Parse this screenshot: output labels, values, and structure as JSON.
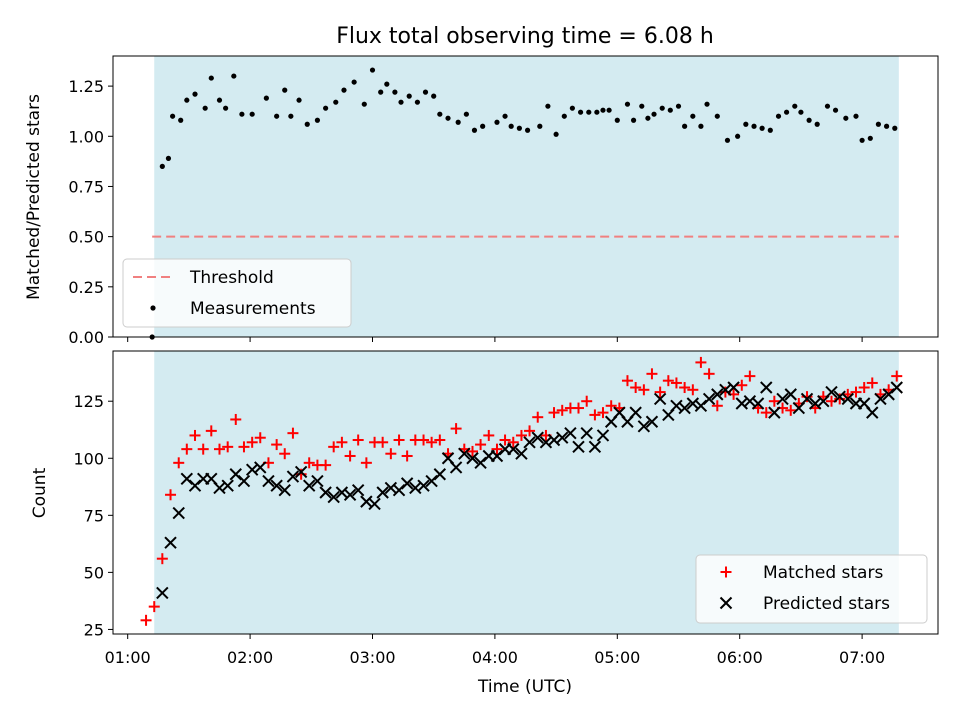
{
  "colors": {
    "background": "#ffffff",
    "shaded_region": "#d4ebf1",
    "threshold_line": "#f08080",
    "measurements": "#000000",
    "matched_stars": "#ff0000",
    "predicted_stars": "#000000",
    "axes": "#000000"
  },
  "chart_data": [
    {
      "type": "scatter",
      "title": "Flux total observing time = 6.08 h",
      "xlabel": "",
      "ylabel": "Matched/Predicted stars",
      "x_unit": "hours since 00:00 UTC",
      "xlim": [
        0.88,
        7.62
      ],
      "ylim": [
        0.0,
        1.4
      ],
      "yticks": [
        0.0,
        0.25,
        0.5,
        0.75,
        1.0,
        1.25
      ],
      "ytick_labels": [
        "0.00",
        "0.25",
        "0.50",
        "0.75",
        "1.00",
        "1.25"
      ],
      "xticks": [
        1,
        2,
        3,
        4,
        5,
        6,
        7
      ],
      "shaded_span": [
        1.217,
        7.3
      ],
      "threshold": {
        "name": "Threshold",
        "value": 0.5,
        "x_range": [
          1.2,
          7.3
        ]
      },
      "legend": {
        "position": "lower-left",
        "entries": [
          "Threshold",
          "Measurements"
        ]
      },
      "series": [
        {
          "name": "Measurements",
          "x": [
            1.2,
            1.283,
            1.333,
            1.367,
            1.433,
            1.483,
            1.55,
            1.633,
            1.683,
            1.75,
            1.8,
            1.867,
            1.933,
            2.017,
            2.133,
            2.217,
            2.283,
            2.333,
            2.4,
            2.467,
            2.55,
            2.617,
            2.7,
            2.767,
            2.85,
            2.933,
            3.0,
            3.067,
            3.117,
            3.183,
            3.233,
            3.3,
            3.367,
            3.433,
            3.5,
            3.55,
            3.617,
            3.7,
            3.767,
            3.833,
            3.9,
            4.017,
            4.083,
            4.133,
            4.2,
            4.267,
            4.367,
            4.433,
            4.5,
            4.567,
            4.633,
            4.7,
            4.767,
            4.833,
            4.883,
            4.933,
            5.0,
            5.083,
            5.133,
            5.2,
            5.25,
            5.3,
            5.367,
            5.433,
            5.5,
            5.55,
            5.617,
            5.683,
            5.733,
            5.817,
            5.9,
            5.983,
            6.05,
            6.117,
            6.183,
            6.25,
            6.317,
            6.383,
            6.45,
            6.5,
            6.567,
            6.633,
            6.717,
            6.783,
            6.867,
            6.95,
            7.0,
            7.067,
            7.133,
            7.2,
            7.267
          ],
          "y": [
            0.0,
            0.85,
            0.89,
            1.1,
            1.08,
            1.18,
            1.21,
            1.14,
            1.29,
            1.18,
            1.14,
            1.3,
            1.11,
            1.11,
            1.19,
            1.1,
            1.23,
            1.1,
            1.18,
            1.06,
            1.08,
            1.14,
            1.17,
            1.23,
            1.27,
            1.16,
            1.33,
            1.22,
            1.26,
            1.22,
            1.17,
            1.2,
            1.17,
            1.22,
            1.2,
            1.11,
            1.09,
            1.07,
            1.11,
            1.03,
            1.05,
            1.07,
            1.1,
            1.05,
            1.04,
            1.03,
            1.05,
            1.15,
            1.01,
            1.1,
            1.14,
            1.12,
            1.12,
            1.12,
            1.13,
            1.13,
            1.08,
            1.16,
            1.08,
            1.15,
            1.09,
            1.11,
            1.14,
            1.13,
            1.15,
            1.05,
            1.1,
            1.05,
            1.16,
            1.1,
            0.98,
            1.0,
            1.06,
            1.05,
            1.04,
            1.03,
            1.1,
            1.12,
            1.15,
            1.12,
            1.08,
            1.06,
            1.15,
            1.13,
            1.09,
            1.1,
            0.98,
            0.99,
            1.06,
            1.05,
            1.04
          ]
        }
      ]
    },
    {
      "type": "scatter",
      "title": "",
      "xlabel": "Time (UTC)",
      "ylabel": "Count",
      "x_unit": "hours since 00:00 UTC",
      "xlim": [
        0.88,
        7.62
      ],
      "ylim": [
        23,
        147
      ],
      "yticks": [
        25,
        50,
        75,
        100,
        125
      ],
      "ytick_labels": [
        "25",
        "50",
        "75",
        "100",
        "125"
      ],
      "xticks": [
        1,
        2,
        3,
        4,
        5,
        6,
        7
      ],
      "xtick_labels": [
        "01:00",
        "02:00",
        "03:00",
        "04:00",
        "05:00",
        "06:00",
        "07:00"
      ],
      "shaded_span": [
        1.217,
        7.3
      ],
      "legend": {
        "position": "lower-right",
        "entries": [
          "Matched stars",
          "Predicted stars"
        ]
      },
      "series": [
        {
          "name": "Matched stars",
          "marker": "+",
          "x": [
            1.15,
            1.217,
            1.283,
            1.35,
            1.417,
            1.483,
            1.55,
            1.617,
            1.683,
            1.75,
            1.817,
            1.883,
            1.95,
            2.017,
            2.083,
            2.15,
            2.217,
            2.283,
            2.35,
            2.417,
            2.483,
            2.55,
            2.617,
            2.683,
            2.75,
            2.817,
            2.883,
            2.95,
            3.017,
            3.083,
            3.15,
            3.217,
            3.283,
            3.35,
            3.417,
            3.483,
            3.55,
            3.617,
            3.683,
            3.75,
            3.817,
            3.883,
            3.95,
            4.017,
            4.083,
            4.15,
            4.217,
            4.283,
            4.35,
            4.417,
            4.483,
            4.55,
            4.617,
            4.683,
            4.75,
            4.817,
            4.883,
            4.95,
            5.017,
            5.083,
            5.15,
            5.217,
            5.283,
            5.35,
            5.417,
            5.483,
            5.55,
            5.617,
            5.683,
            5.75,
            5.817,
            5.883,
            5.95,
            6.017,
            6.083,
            6.15,
            6.217,
            6.283,
            6.35,
            6.417,
            6.483,
            6.55,
            6.617,
            6.683,
            6.75,
            6.817,
            6.883,
            6.95,
            7.017,
            7.083,
            7.15,
            7.217,
            7.283
          ],
          "y": [
            29,
            35,
            56,
            84,
            98,
            104,
            110,
            104,
            112,
            104,
            105,
            117,
            105,
            107,
            109,
            98,
            106,
            102,
            111,
            93,
            98,
            97,
            97,
            105,
            107,
            101,
            108,
            98,
            107,
            107,
            102,
            108,
            101,
            108,
            108,
            107,
            108,
            102,
            113,
            104,
            103,
            106,
            110,
            104,
            108,
            107,
            110,
            112,
            118,
            110,
            120,
            121,
            122,
            122,
            125,
            119,
            120,
            123,
            122,
            134,
            131,
            130,
            137,
            129,
            134,
            133,
            131,
            130,
            142,
            137,
            123,
            129,
            128,
            132,
            136,
            122,
            120,
            125,
            122,
            121,
            124,
            127,
            122,
            127,
            125,
            126,
            128,
            129,
            131,
            133,
            128,
            130,
            136
          ]
        },
        {
          "name": "Predicted stars",
          "marker": "x",
          "x": [
            1.283,
            1.35,
            1.417,
            1.483,
            1.55,
            1.617,
            1.683,
            1.75,
            1.817,
            1.883,
            1.95,
            2.017,
            2.083,
            2.15,
            2.217,
            2.283,
            2.35,
            2.417,
            2.483,
            2.55,
            2.617,
            2.683,
            2.75,
            2.817,
            2.883,
            2.95,
            3.017,
            3.083,
            3.15,
            3.217,
            3.283,
            3.35,
            3.417,
            3.483,
            3.55,
            3.617,
            3.683,
            3.75,
            3.817,
            3.883,
            3.95,
            4.017,
            4.083,
            4.15,
            4.217,
            4.283,
            4.35,
            4.417,
            4.483,
            4.55,
            4.617,
            4.683,
            4.75,
            4.817,
            4.883,
            4.95,
            5.017,
            5.083,
            5.15,
            5.217,
            5.283,
            5.35,
            5.417,
            5.483,
            5.55,
            5.617,
            5.683,
            5.75,
            5.817,
            5.883,
            5.95,
            6.017,
            6.083,
            6.15,
            6.217,
            6.283,
            6.35,
            6.417,
            6.483,
            6.55,
            6.617,
            6.683,
            6.75,
            6.817,
            6.883,
            6.95,
            7.017,
            7.083,
            7.15,
            7.217,
            7.283
          ],
          "y": [
            41,
            63,
            76,
            91,
            88,
            91,
            91,
            87,
            88,
            93,
            90,
            95,
            96,
            90,
            88,
            86,
            92,
            94,
            88,
            90,
            85,
            83,
            85,
            84,
            86,
            81,
            80,
            85,
            87,
            86,
            89,
            87,
            88,
            90,
            93,
            100,
            96,
            102,
            100,
            98,
            101,
            101,
            104,
            104,
            102,
            107,
            109,
            107,
            108,
            109,
            111,
            105,
            111,
            105,
            110,
            116,
            120,
            116,
            120,
            114,
            116,
            126,
            119,
            123,
            122,
            124,
            123,
            126,
            128,
            130,
            131,
            124,
            125,
            124,
            131,
            120,
            126,
            128,
            122,
            126,
            124,
            125,
            129,
            127,
            126,
            124,
            124,
            120,
            126,
            128,
            131
          ]
        }
      ]
    }
  ]
}
